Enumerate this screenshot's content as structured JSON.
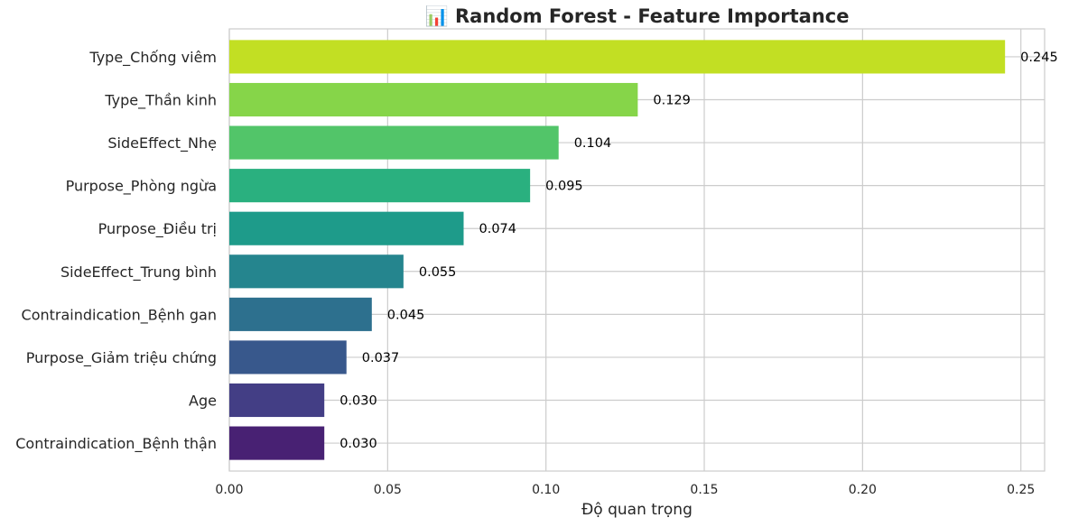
{
  "chart_data": {
    "type": "bar",
    "orientation": "horizontal",
    "title": "📊 Random Forest - Feature Importance",
    "xlabel": "Độ quan trọng",
    "ylabel": "",
    "xlim": [
      0,
      0.2575
    ],
    "x_ticks": [
      0.0,
      0.05,
      0.1,
      0.15,
      0.2,
      0.25
    ],
    "x_tick_labels": [
      "0.00",
      "0.05",
      "0.10",
      "0.15",
      "0.20",
      "0.25"
    ],
    "grid": true,
    "categories": [
      "Type_Chống viêm",
      "Type_Thần kinh",
      "SideEffect_Nhẹ",
      "Purpose_Phòng ngừa",
      "Purpose_Điều trị",
      "SideEffect_Trung bình",
      "Contraindication_Bệnh gan",
      "Purpose_Giảm triệu chứng",
      "Age",
      "Contraindication_Bệnh thận"
    ],
    "values": [
      0.245,
      0.129,
      0.104,
      0.095,
      0.074,
      0.055,
      0.045,
      0.037,
      0.03,
      0.03
    ],
    "value_labels": [
      "0.245",
      "0.129",
      "0.104",
      "0.095",
      "0.074",
      "0.055",
      "0.045",
      "0.037",
      "0.030",
      "0.030"
    ],
    "colors": [
      "#c2df23",
      "#86d549",
      "#52c569",
      "#2ab07f",
      "#1e9b8a",
      "#25858e",
      "#2d708e",
      "#38588c",
      "#433e85",
      "#482173"
    ]
  }
}
